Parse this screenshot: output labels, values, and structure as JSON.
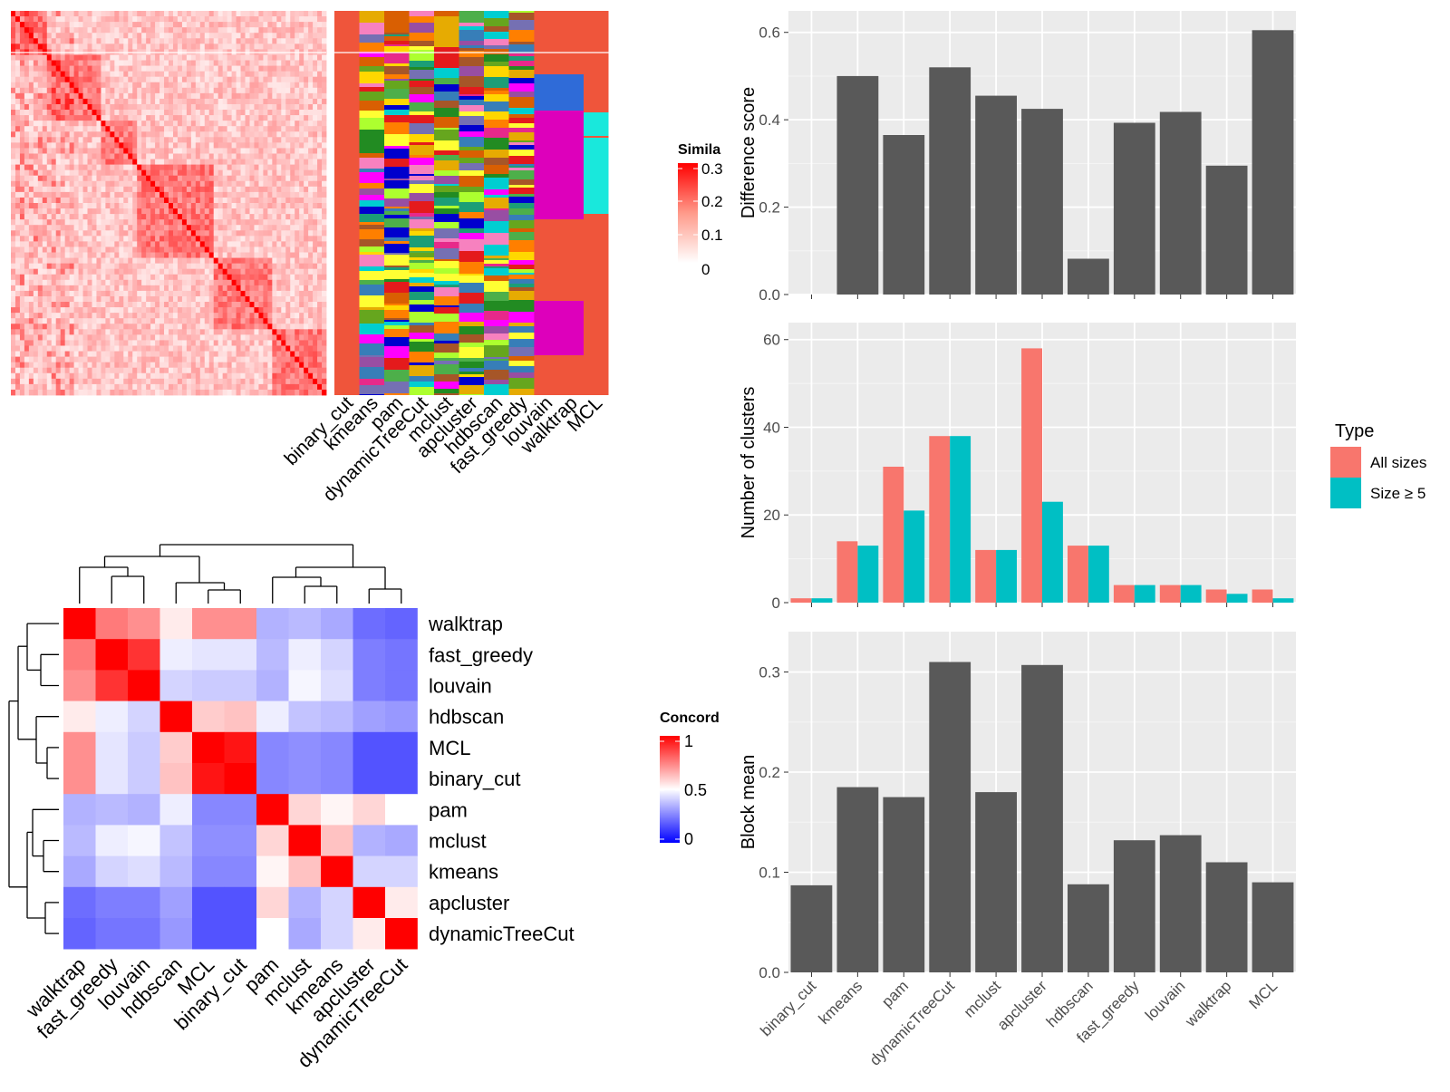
{
  "methods": [
    "binary_cut",
    "kmeans",
    "pam",
    "dynamicTreeCut",
    "mclust",
    "apcluster",
    "hdbscan",
    "fast_greedy",
    "louvain",
    "walktrap",
    "MCL"
  ],
  "similarity_legend": {
    "title": "Simila",
    "ticks": [
      "0.3",
      "0.2",
      "0.1",
      "0"
    ],
    "colors": {
      "high": "#ff0000",
      "low": "#ffffff"
    }
  },
  "concordance": {
    "order": [
      "walktrap",
      "fast_greedy",
      "louvain",
      "hdbscan",
      "MCL",
      "binary_cut",
      "pam",
      "mclust",
      "kmeans",
      "apcluster",
      "dynamicTreeCut"
    ],
    "legend_title": "Concord",
    "legend_ticks": [
      "1",
      "0.5",
      "0"
    ],
    "colors": {
      "high": "#ff0000",
      "mid": "#ffffff",
      "low": "#0000ff"
    },
    "matrix": [
      [
        1.0,
        0.76,
        0.72,
        0.54,
        0.72,
        0.72,
        0.32,
        0.34,
        0.3,
        0.16,
        0.14
      ],
      [
        0.76,
        1.0,
        0.9,
        0.46,
        0.44,
        0.44,
        0.34,
        0.46,
        0.4,
        0.2,
        0.18
      ],
      [
        0.72,
        0.9,
        1.0,
        0.4,
        0.38,
        0.38,
        0.32,
        0.48,
        0.42,
        0.2,
        0.18
      ],
      [
        0.54,
        0.46,
        0.4,
        1.0,
        0.6,
        0.62,
        0.46,
        0.36,
        0.34,
        0.28,
        0.26
      ],
      [
        0.72,
        0.44,
        0.38,
        0.6,
        1.0,
        0.96,
        0.22,
        0.24,
        0.22,
        0.1,
        0.1
      ],
      [
        0.72,
        0.44,
        0.38,
        0.62,
        0.96,
        1.0,
        0.22,
        0.24,
        0.22,
        0.1,
        0.1
      ],
      [
        0.32,
        0.34,
        0.32,
        0.46,
        0.22,
        0.22,
        1.0,
        0.58,
        0.52,
        0.58,
        0.5
      ],
      [
        0.34,
        0.46,
        0.48,
        0.36,
        0.24,
        0.24,
        0.58,
        1.0,
        0.62,
        0.32,
        0.3
      ],
      [
        0.3,
        0.4,
        0.42,
        0.34,
        0.22,
        0.22,
        0.52,
        0.62,
        1.0,
        0.4,
        0.4
      ],
      [
        0.16,
        0.2,
        0.2,
        0.28,
        0.1,
        0.1,
        0.58,
        0.32,
        0.4,
        1.0,
        0.54
      ],
      [
        0.14,
        0.18,
        0.18,
        0.26,
        0.1,
        0.1,
        0.5,
        0.3,
        0.4,
        0.54,
        1.0
      ]
    ]
  },
  "chart_data": [
    {
      "type": "bar",
      "categories": [
        "binary_cut",
        "kmeans",
        "pam",
        "dynamicTreeCut",
        "mclust",
        "apcluster",
        "hdbscan",
        "fast_greedy",
        "louvain",
        "walktrap",
        "MCL"
      ],
      "values": [
        0,
        0.5,
        0.365,
        0.52,
        0.455,
        0.425,
        0.082,
        0.393,
        0.418,
        0.295,
        0.605
      ],
      "ylabel": "Difference score",
      "ylim": [
        0,
        0.62
      ],
      "yticks": [
        "0.0",
        "0.2",
        "0.4",
        "0.6"
      ],
      "ytick_values": [
        0,
        0.2,
        0.4,
        0.6
      ],
      "color": "#595959",
      "grid": true
    },
    {
      "type": "bar",
      "categories": [
        "binary_cut",
        "kmeans",
        "pam",
        "dynamicTreeCut",
        "mclust",
        "apcluster",
        "hdbscan",
        "fast_greedy",
        "louvain",
        "walktrap",
        "MCL"
      ],
      "series": [
        {
          "name": "All sizes",
          "values": [
            1,
            14,
            31,
            38,
            12,
            58,
            13,
            4,
            4,
            3,
            3
          ],
          "color": "#f8766d"
        },
        {
          "name": "Size ≥ 5",
          "values": [
            1,
            13,
            21,
            38,
            12,
            23,
            13,
            4,
            4,
            2,
            1
          ],
          "color": "#00bfc4"
        }
      ],
      "ylabel": "Number of clusters",
      "ylim": [
        0,
        61
      ],
      "yticks": [
        "0",
        "20",
        "40",
        "60"
      ],
      "ytick_values": [
        0,
        20,
        40,
        60
      ],
      "legend_title": "Type",
      "legend_position": "right",
      "grid": true
    },
    {
      "type": "bar",
      "categories": [
        "binary_cut",
        "kmeans",
        "pam",
        "dynamicTreeCut",
        "mclust",
        "apcluster",
        "hdbscan",
        "fast_greedy",
        "louvain",
        "walktrap",
        "MCL"
      ],
      "values": [
        0.087,
        0.185,
        0.175,
        0.31,
        0.18,
        0.307,
        0.088,
        0.132,
        0.137,
        0.11,
        0.09
      ],
      "ylabel": "Block mean",
      "ylim": [
        0,
        0.325
      ],
      "yticks": [
        "0.0",
        "0.1",
        "0.2",
        "0.3"
      ],
      "ytick_values": [
        0,
        0.1,
        0.2,
        0.3
      ],
      "color": "#595959",
      "grid": true
    }
  ]
}
